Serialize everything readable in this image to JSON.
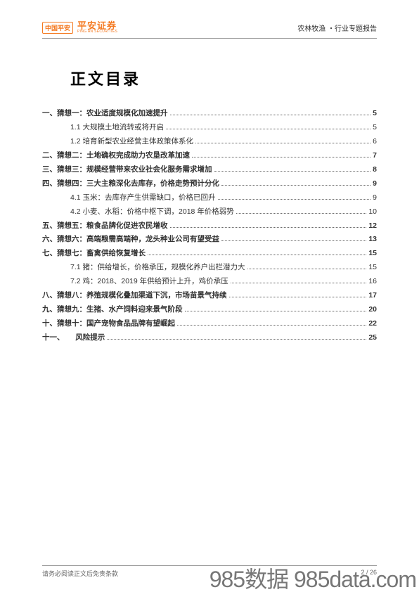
{
  "header": {
    "logo_badge": "中国平安",
    "logo_cn": "平安证券",
    "logo_en": "PING AN SECURITIES",
    "right_text": "农林牧渔 ・行业专题报告"
  },
  "title": "正文目录",
  "toc": [
    {
      "level": 1,
      "label": "一、猜想一：农业适度规模化加速提升",
      "page": "5"
    },
    {
      "level": 2,
      "label": "1.1 大规模土地流转或将开启",
      "page": "5"
    },
    {
      "level": 2,
      "label": "1.2 培育新型农业经营主体政策体系化",
      "page": "6"
    },
    {
      "level": 1,
      "label": "二、猜想二：土地确权完成助力农垦改革加速",
      "page": "7"
    },
    {
      "level": 1,
      "label": "三、猜想三：规模经营带来农业社会化服务需求增加",
      "page": "8"
    },
    {
      "level": 1,
      "label": "四、猜想四：三大主粮深化去库存，价格走势预计分化",
      "page": "9"
    },
    {
      "level": 2,
      "label": "4.1 玉米：去库存产生供需缺口，价格已回升",
      "page": "9"
    },
    {
      "level": 2,
      "label": "4.2 小麦、水稻：价格中枢下调，2018 年价格弱势",
      "page": "10"
    },
    {
      "level": 1,
      "label": "五、猜想五：粮食品牌化促进农民增收",
      "page": "12"
    },
    {
      "level": 1,
      "label": "六、猜想六：高端粮需高端种，龙头种业公司有望受益",
      "page": "13"
    },
    {
      "level": 1,
      "label": "七、猜想七：畜禽供给恢复增长",
      "page": "15"
    },
    {
      "level": 2,
      "label": "7.1 猪：供给增长，价格承压，规模化养户出栏潜力大",
      "page": "15"
    },
    {
      "level": 2,
      "label": "7.2 鸡：2018、2019 年供给预计上升，鸡价承压",
      "page": "16"
    },
    {
      "level": 1,
      "label": "八、猜想八：养殖规模化叠加渠道下沉，市场苗景气持续",
      "page": "17"
    },
    {
      "level": 1,
      "label": "九、猜想九：生猪、水产饲料迎来景气阶段",
      "page": "20"
    },
    {
      "level": 1,
      "label": "十、猜想十：国产宠物食品品牌有望崛起",
      "page": "22"
    },
    {
      "level": 1,
      "label": "十一、　　风险提示",
      "page": "25"
    }
  ],
  "footer": {
    "left": "请务必阅读正文后免责条款",
    "right": "2 / 26"
  },
  "watermark": "985数据 985data.com"
}
